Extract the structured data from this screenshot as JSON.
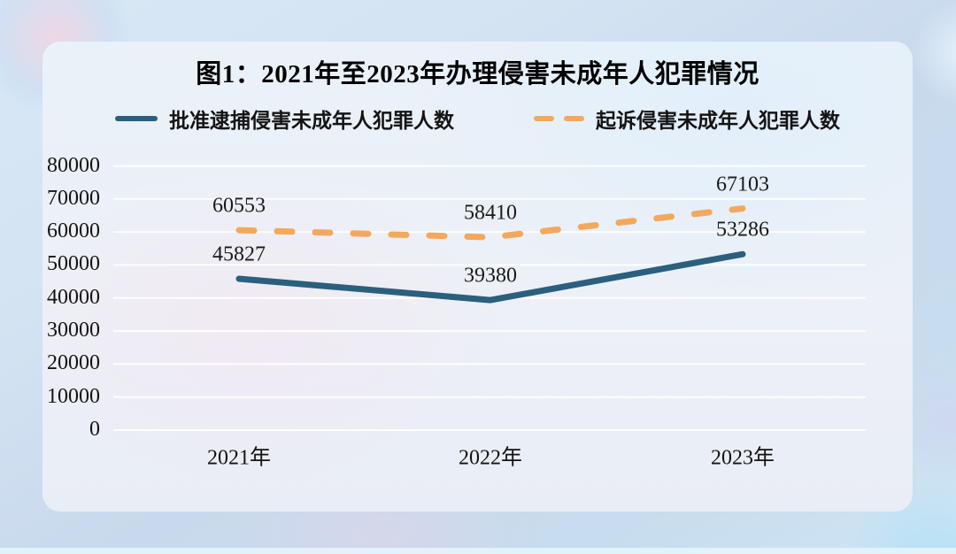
{
  "chart_data": {
    "type": "line",
    "title": "图1：2021年至2023年办理侵害未成年人犯罪情况",
    "categories": [
      "2021年",
      "2022年",
      "2023年"
    ],
    "series": [
      {
        "name": "批准逮捕侵害未成年人犯罪人数",
        "values": [
          45827,
          39380,
          53286
        ],
        "color": "#2b5f7e",
        "style": "solid"
      },
      {
        "name": "起诉侵害未成年人犯罪人数",
        "values": [
          60553,
          58410,
          67103
        ],
        "color": "#f3a85c",
        "style": "dashed"
      }
    ],
    "ylim": [
      0,
      80000
    ],
    "yticks": [
      0,
      10000,
      20000,
      30000,
      40000,
      50000,
      60000,
      70000,
      80000
    ],
    "xlabel": "",
    "ylabel": "",
    "grid": "horizontal",
    "grid_color": "#ffffff",
    "text_color": "#1a1a1a",
    "legend_position": "top",
    "data_labels_visible": true
  }
}
